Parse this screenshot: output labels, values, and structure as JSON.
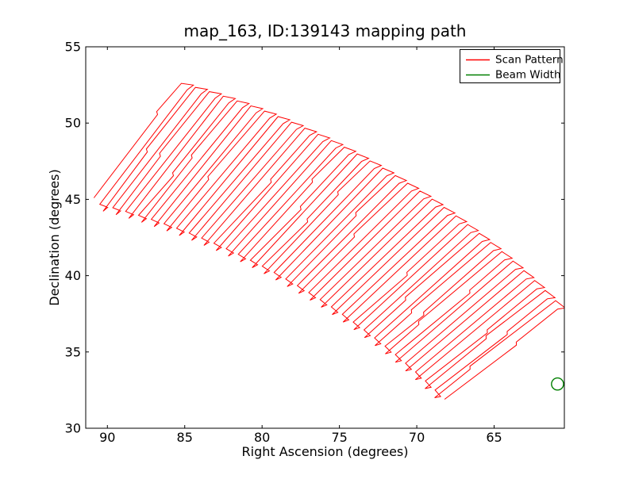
{
  "title": "map_163, ID:139143 mapping path",
  "chart_data": {
    "type": "line",
    "title": "map_163, ID:139143 mapping path",
    "xlabel": "Right Ascension (degrees)",
    "ylabel": "Declination (degrees)",
    "xlim": [
      91.4,
      60.46
    ],
    "ylim": [
      30,
      55
    ],
    "x_axis_inverted": true,
    "x_ticks": [
      90,
      85,
      80,
      75,
      70,
      65
    ],
    "y_ticks": [
      55,
      50,
      45,
      40,
      35,
      30
    ],
    "grid": false,
    "tick_direction": "in",
    "legend": {
      "position": "upper right",
      "entries": [
        {
          "label": "Scan Pattern",
          "color": "#ff0000"
        },
        {
          "label": "Beam Width",
          "color": "#007f00"
        }
      ]
    },
    "series": [
      {
        "name": "Scan Pattern",
        "color": "#ff0000",
        "style": "boustrophedon raster scan path with hooked turnarounds",
        "extent": {
          "left_tip": {
            "ra": 90.8,
            "dec": 45.5
          },
          "top_corner": {
            "ra": 85.2,
            "dec": 52.6
          },
          "right_tip": {
            "ra": 60.5,
            "dec": 38.3
          },
          "bottom_corner": {
            "ra": 67.4,
            "dec": 32.7
          }
        },
        "scan_model": {
          "arc_center": {
            "ra_deg": 100.22,
            "dec_deg": -0.56
          },
          "outer_radius_deg": 55.24,
          "scan_line_length_deg": 9.4,
          "n_scan_lines": 62,
          "arc_angle_start_deg": 15.76,
          "arc_angle_end_deg": 45.2,
          "scan_dir_start_deg": 217,
          "scan_dir_end_deg": 231,
          "top_cap": {
            "forward_deg": 0.78,
            "rise_deg": 0.1,
            "notch_back_deg": 0.3,
            "notch_in_deg": 0.4
          },
          "bottom_cap": {
            "forward_deg": 0.55,
            "drop_deg": 0.05,
            "notch_back_deg": 0.22,
            "notch_in_deg": 0.33
          },
          "jog": {
            "probability": 0.4,
            "lateral_deg": 0.16,
            "along_deg": 0.12
          }
        }
      },
      {
        "name": "Beam Width",
        "color": "#007f00",
        "marker": "open_circle",
        "center": {
          "ra_deg": 60.9,
          "dec_deg": 32.9
        },
        "radius_deg": 0.39
      }
    ]
  }
}
